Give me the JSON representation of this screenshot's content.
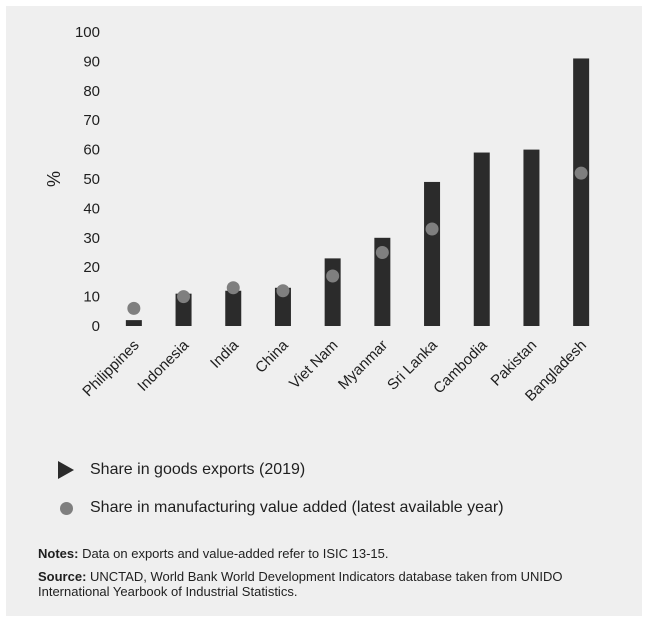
{
  "chart_data": {
    "type": "bar",
    "ylabel": "%",
    "ylim": [
      0,
      100
    ],
    "yticks": [
      0,
      10,
      20,
      30,
      40,
      50,
      60,
      70,
      80,
      90,
      100
    ],
    "categories": [
      "Philippines",
      "Indonesia",
      "India",
      "China",
      "Viet Nam",
      "Myanmar",
      "Sri Lanka",
      "Cambodia",
      "Pakistan",
      "Bangladesh"
    ],
    "series": [
      {
        "name": "Share in goods exports (2019)",
        "kind": "bar",
        "color": "#2b2b2b",
        "values": [
          2,
          11,
          12,
          13,
          23,
          30,
          49,
          59,
          60,
          91
        ]
      },
      {
        "name": "Share in manufacturing value added (latest available year)",
        "kind": "dot",
        "color": "#7f7f7f",
        "values": [
          6,
          10,
          13,
          12,
          17,
          25,
          33,
          null,
          null,
          52
        ]
      }
    ],
    "grid": false,
    "legend_position": "bottom"
  },
  "legend": {
    "bar_label": "Share in goods exports (2019)",
    "dot_label": "Share in manufacturing value added (latest available year)"
  },
  "notes": {
    "notes_label": "Notes:",
    "notes_text": " Data on exports and value-added refer to ISIC 13-15.",
    "source_label": "Source:",
    "source_text": " UNCTAD, World Bank World Development Indicators database taken from UNIDO International Yearbook of Industrial Statistics."
  }
}
